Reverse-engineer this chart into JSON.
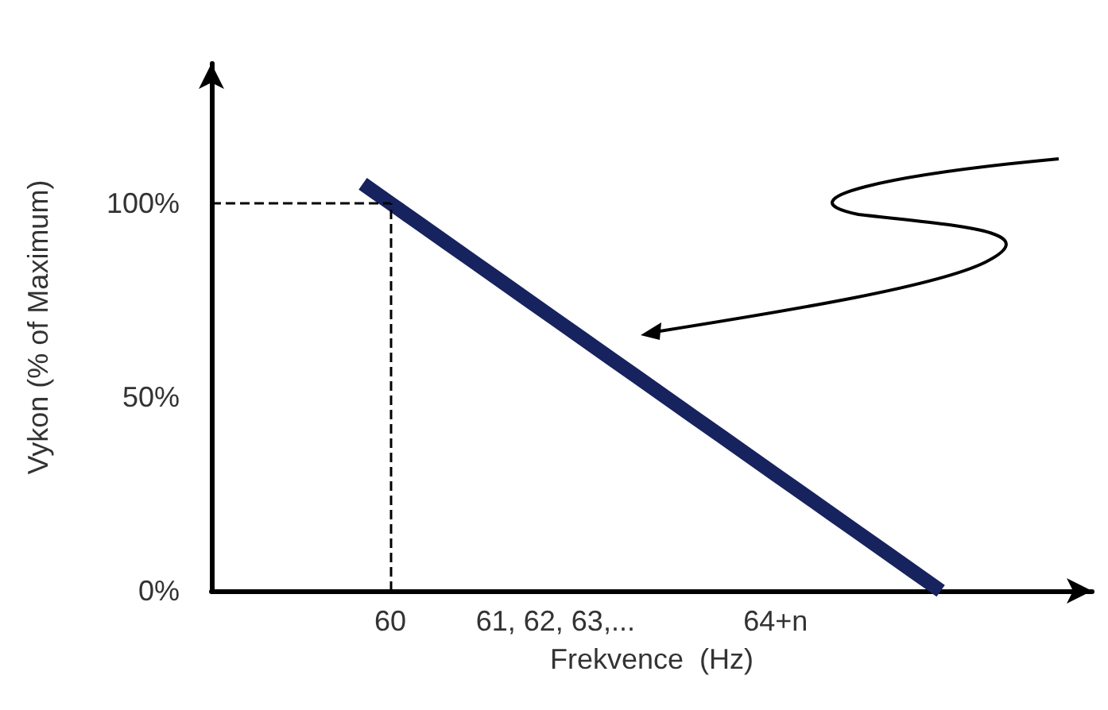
{
  "chart_data": {
    "type": "line",
    "xlabel": "Frekvence  (Hz)",
    "ylabel": "Vykon (% of Maximum)",
    "categories": [
      null,
      null,
      null,
      null,
      null,
      null,
      "60",
      null,
      null,
      null,
      null,
      null,
      "61, 62, 63,...",
      null,
      null,
      null,
      null,
      null,
      null,
      null,
      "64+n",
      null,
      null,
      null,
      null,
      null,
      null,
      null,
      null,
      null,
      null,
      null
    ],
    "series": [
      {
        "color": "#16235e",
        "values": [
          null,
          null,
          null,
          null,
          null,
          105,
          100,
          95,
          90,
          85,
          80,
          75,
          70,
          65,
          60,
          55,
          50,
          45,
          40,
          35,
          30,
          25,
          20,
          15,
          10,
          5,
          0,
          null,
          null,
          null,
          null,
          null
        ]
      }
    ],
    "ylim": [
      0,
      136
    ],
    "yticks": [
      {
        "value": 0,
        "label": "0%"
      },
      {
        "value": 50,
        "label": "50%"
      },
      {
        "value": 100,
        "label": "100%"
      }
    ],
    "ref_lines": [
      {
        "axis": "x",
        "value": "60",
        "line_style": "dashed",
        "color": "#000000"
      },
      {
        "axis": "y",
        "value": 100,
        "line_style": "dashed",
        "color": "#000000"
      }
    ],
    "grid": false,
    "marker": "none",
    "line_style": "solid"
  }
}
